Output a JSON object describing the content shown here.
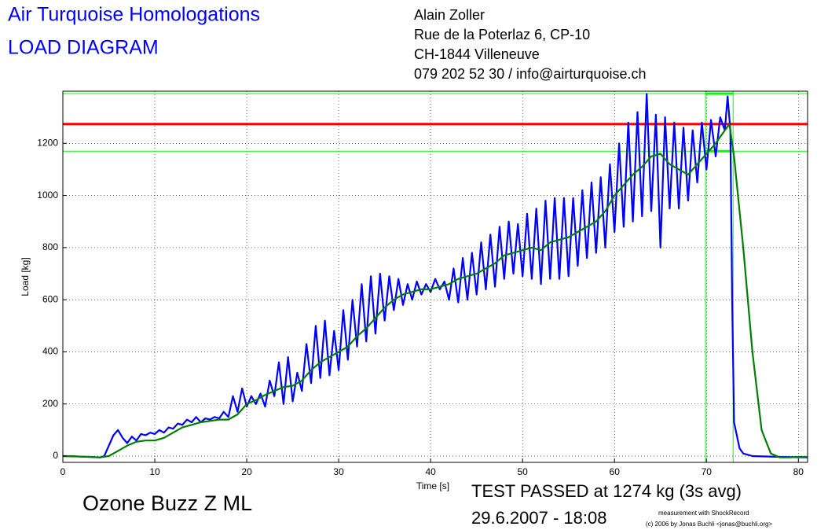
{
  "chart_data": {
    "type": "line",
    "title": "Air Turquoise Homologations",
    "subtitle": "LOAD DIAGRAM",
    "address": [
      "Alain Zoller",
      "Rue de la Poterlaz 6, CP-10",
      "CH-1844 Villeneuve",
      "079 202 52 30 / info@airturquoise.ch"
    ],
    "glider": "Ozone Buzz Z ML",
    "result": "TEST PASSED at 1274 kg (3s avg)",
    "date": "29.6.2007 - 18:08",
    "credits": [
      "measurement with ShockRecord",
      "(c) 2006 by Jonas Buchli <jonas@buchli.org>"
    ],
    "xlabel": "Time [s]",
    "ylabel": "Load [kg]",
    "xlim": [
      0,
      81
    ],
    "ylim": [
      -24,
      1400
    ],
    "xticks": [
      0,
      10,
      20,
      30,
      40,
      50,
      60,
      70,
      80
    ],
    "yticks": [
      0,
      200,
      400,
      600,
      800,
      1000,
      1200
    ],
    "grid": true,
    "hlines": [
      {
        "value": 1274,
        "color": "#ff0000"
      },
      {
        "value": 1391,
        "color": "#00ff00"
      },
      {
        "value": 1170,
        "color": "#00ff00"
      }
    ],
    "vlines": [
      {
        "value": 69.9,
        "color": "#00ff00"
      },
      {
        "value": 72.9,
        "color": "#00ff00"
      }
    ],
    "series": [
      {
        "color": "#0000ff",
        "x": [
          0,
          2,
          4,
          4.5,
          5,
          5.5,
          6,
          6.5,
          7,
          7.5,
          8,
          8.5,
          9,
          9.5,
          10,
          10.5,
          11,
          11.5,
          12,
          12.5,
          13,
          13.5,
          14,
          14.5,
          15,
          15.5,
          16,
          16.5,
          17,
          17.5,
          18,
          18.5,
          19,
          19.5,
          20,
          20.5,
          21,
          21.5,
          22,
          22.5,
          23,
          23.5,
          24,
          24.5,
          25,
          25.5,
          26,
          26.5,
          27,
          27.5,
          28,
          28.5,
          29,
          29.5,
          30,
          30.5,
          31,
          31.5,
          32,
          32.5,
          33,
          33.5,
          34,
          34.5,
          35,
          35.5,
          36,
          36.5,
          37,
          37.5,
          38,
          38.5,
          39,
          39.5,
          40,
          40.5,
          41,
          41.5,
          42,
          42.5,
          43,
          43.5,
          44,
          44.5,
          45,
          45.5,
          46,
          46.5,
          47,
          47.5,
          48,
          48.5,
          49,
          49.5,
          50,
          50.5,
          51,
          51.5,
          52,
          52.5,
          53,
          53.5,
          54,
          54.5,
          55,
          55.5,
          56,
          56.5,
          57,
          57.5,
          58,
          58.5,
          59,
          59.5,
          60,
          60.5,
          61,
          61.5,
          62,
          62.5,
          63,
          63.5,
          64,
          64.5,
          65,
          65.5,
          66,
          66.5,
          67,
          67.5,
          68,
          68.5,
          69,
          69.5,
          70,
          70.5,
          71,
          71.5,
          72,
          72.3,
          72.6,
          72.8,
          73,
          73.3,
          73.6,
          74,
          75,
          78,
          81
        ],
        "values": [
          0,
          -2,
          -5,
          0,
          40,
          80,
          100,
          70,
          50,
          75,
          60,
          85,
          80,
          90,
          85,
          100,
          90,
          110,
          105,
          125,
          120,
          140,
          130,
          150,
          130,
          145,
          140,
          150,
          145,
          170,
          150,
          230,
          170,
          260,
          190,
          230,
          200,
          240,
          190,
          290,
          230,
          360,
          200,
          380,
          210,
          320,
          250,
          430,
          280,
          500,
          300,
          520,
          310,
          480,
          330,
          560,
          370,
          600,
          420,
          660,
          440,
          690,
          470,
          700,
          520,
          690,
          560,
          680,
          580,
          660,
          600,
          670,
          620,
          660,
          630,
          680,
          640,
          670,
          600,
          720,
          590,
          760,
          600,
          780,
          620,
          820,
          640,
          850,
          650,
          880,
          680,
          900,
          700,
          890,
          690,
          930,
          680,
          950,
          660,
          980,
          680,
          990,
          680,
          990,
          690,
          990,
          730,
          1020,
          760,
          1050,
          780,
          1070,
          800,
          1120,
          860,
          1200,
          880,
          1280,
          900,
          1320,
          920,
          1390,
          940,
          1310,
          800,
          1300,
          950,
          1280,
          950,
          1260,
          980,
          1250,
          1050,
          1280,
          1100,
          1290,
          1150,
          1300,
          1250,
          1380,
          1250,
          600,
          130,
          80,
          30,
          10,
          0,
          -3,
          -5
        ]
      },
      {
        "color": "#008000",
        "x": [
          0,
          1,
          2,
          3,
          4,
          5,
          6,
          7,
          8,
          9,
          10,
          11,
          12,
          13,
          14,
          15,
          16,
          17,
          18,
          19,
          20,
          21,
          22,
          23,
          24,
          25,
          26,
          27,
          28,
          29,
          30,
          31,
          32,
          33,
          34,
          35,
          36,
          37,
          38,
          39,
          40,
          41,
          42,
          43,
          44,
          45,
          46,
          47,
          48,
          49,
          50,
          51,
          52,
          53,
          54,
          55,
          56,
          57,
          58,
          59,
          60,
          61,
          62,
          63,
          64,
          65,
          66,
          67,
          68,
          69,
          70,
          71,
          72,
          72.5,
          73,
          74,
          75,
          76,
          77,
          78,
          79,
          80,
          81
        ],
        "values": [
          0,
          0,
          -2,
          -3,
          -5,
          0,
          20,
          40,
          55,
          60,
          60,
          70,
          90,
          110,
          120,
          130,
          135,
          140,
          140,
          160,
          200,
          215,
          235,
          250,
          265,
          270,
          290,
          330,
          360,
          380,
          400,
          420,
          460,
          490,
          530,
          570,
          600,
          620,
          630,
          640,
          640,
          650,
          660,
          680,
          690,
          700,
          720,
          740,
          770,
          780,
          790,
          800,
          790,
          820,
          830,
          840,
          860,
          880,
          900,
          940,
          1000,
          1040,
          1080,
          1110,
          1150,
          1160,
          1120,
          1100,
          1080,
          1120,
          1160,
          1200,
          1250,
          1274,
          1150,
          800,
          400,
          100,
          10,
          -5,
          -5,
          -3,
          -3
        ]
      }
    ]
  }
}
